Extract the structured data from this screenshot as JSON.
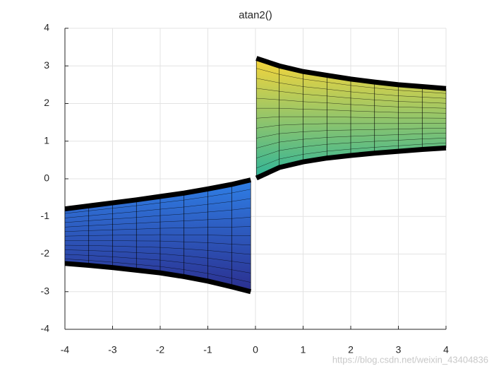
{
  "chart_data": {
    "type": "band",
    "title": "atan2()",
    "xlim": [
      -4,
      4
    ],
    "xticks": [
      -4,
      -3,
      -2,
      -1,
      0,
      1,
      2,
      3,
      4
    ],
    "ylim": [
      -4,
      4
    ],
    "yticks": [
      -4,
      -3,
      -2,
      -1,
      0,
      1,
      2,
      3,
      4
    ],
    "grid": true,
    "bands": [
      {
        "x": [
          -4,
          -3.5,
          -3,
          -2.5,
          -2,
          -1.5,
          -1,
          -0.5,
          -0.1
        ],
        "upper": [
          -0.8,
          -0.72,
          -0.64,
          -0.56,
          -0.47,
          -0.38,
          -0.27,
          -0.15,
          -0.03
        ],
        "lower": [
          -2.25,
          -2.3,
          -2.36,
          -2.43,
          -2.5,
          -2.6,
          -2.72,
          -2.87,
          -3.0
        ],
        "colors": [
          "#2f7fe6",
          "#2b2f8f"
        ]
      },
      {
        "x": [
          0.02,
          0.5,
          1,
          1.5,
          2,
          2.5,
          3,
          3.5,
          4
        ],
        "upper": [
          3.2,
          3.0,
          2.85,
          2.75,
          2.65,
          2.57,
          2.5,
          2.45,
          2.4
        ],
        "lower": [
          0.02,
          0.3,
          0.45,
          0.55,
          0.62,
          0.68,
          0.73,
          0.78,
          0.82
        ],
        "colors": [
          "#f7d53a",
          "#2fb59a"
        ]
      }
    ],
    "watermark": "https://blog.csdn.net/weixin_43404836"
  }
}
